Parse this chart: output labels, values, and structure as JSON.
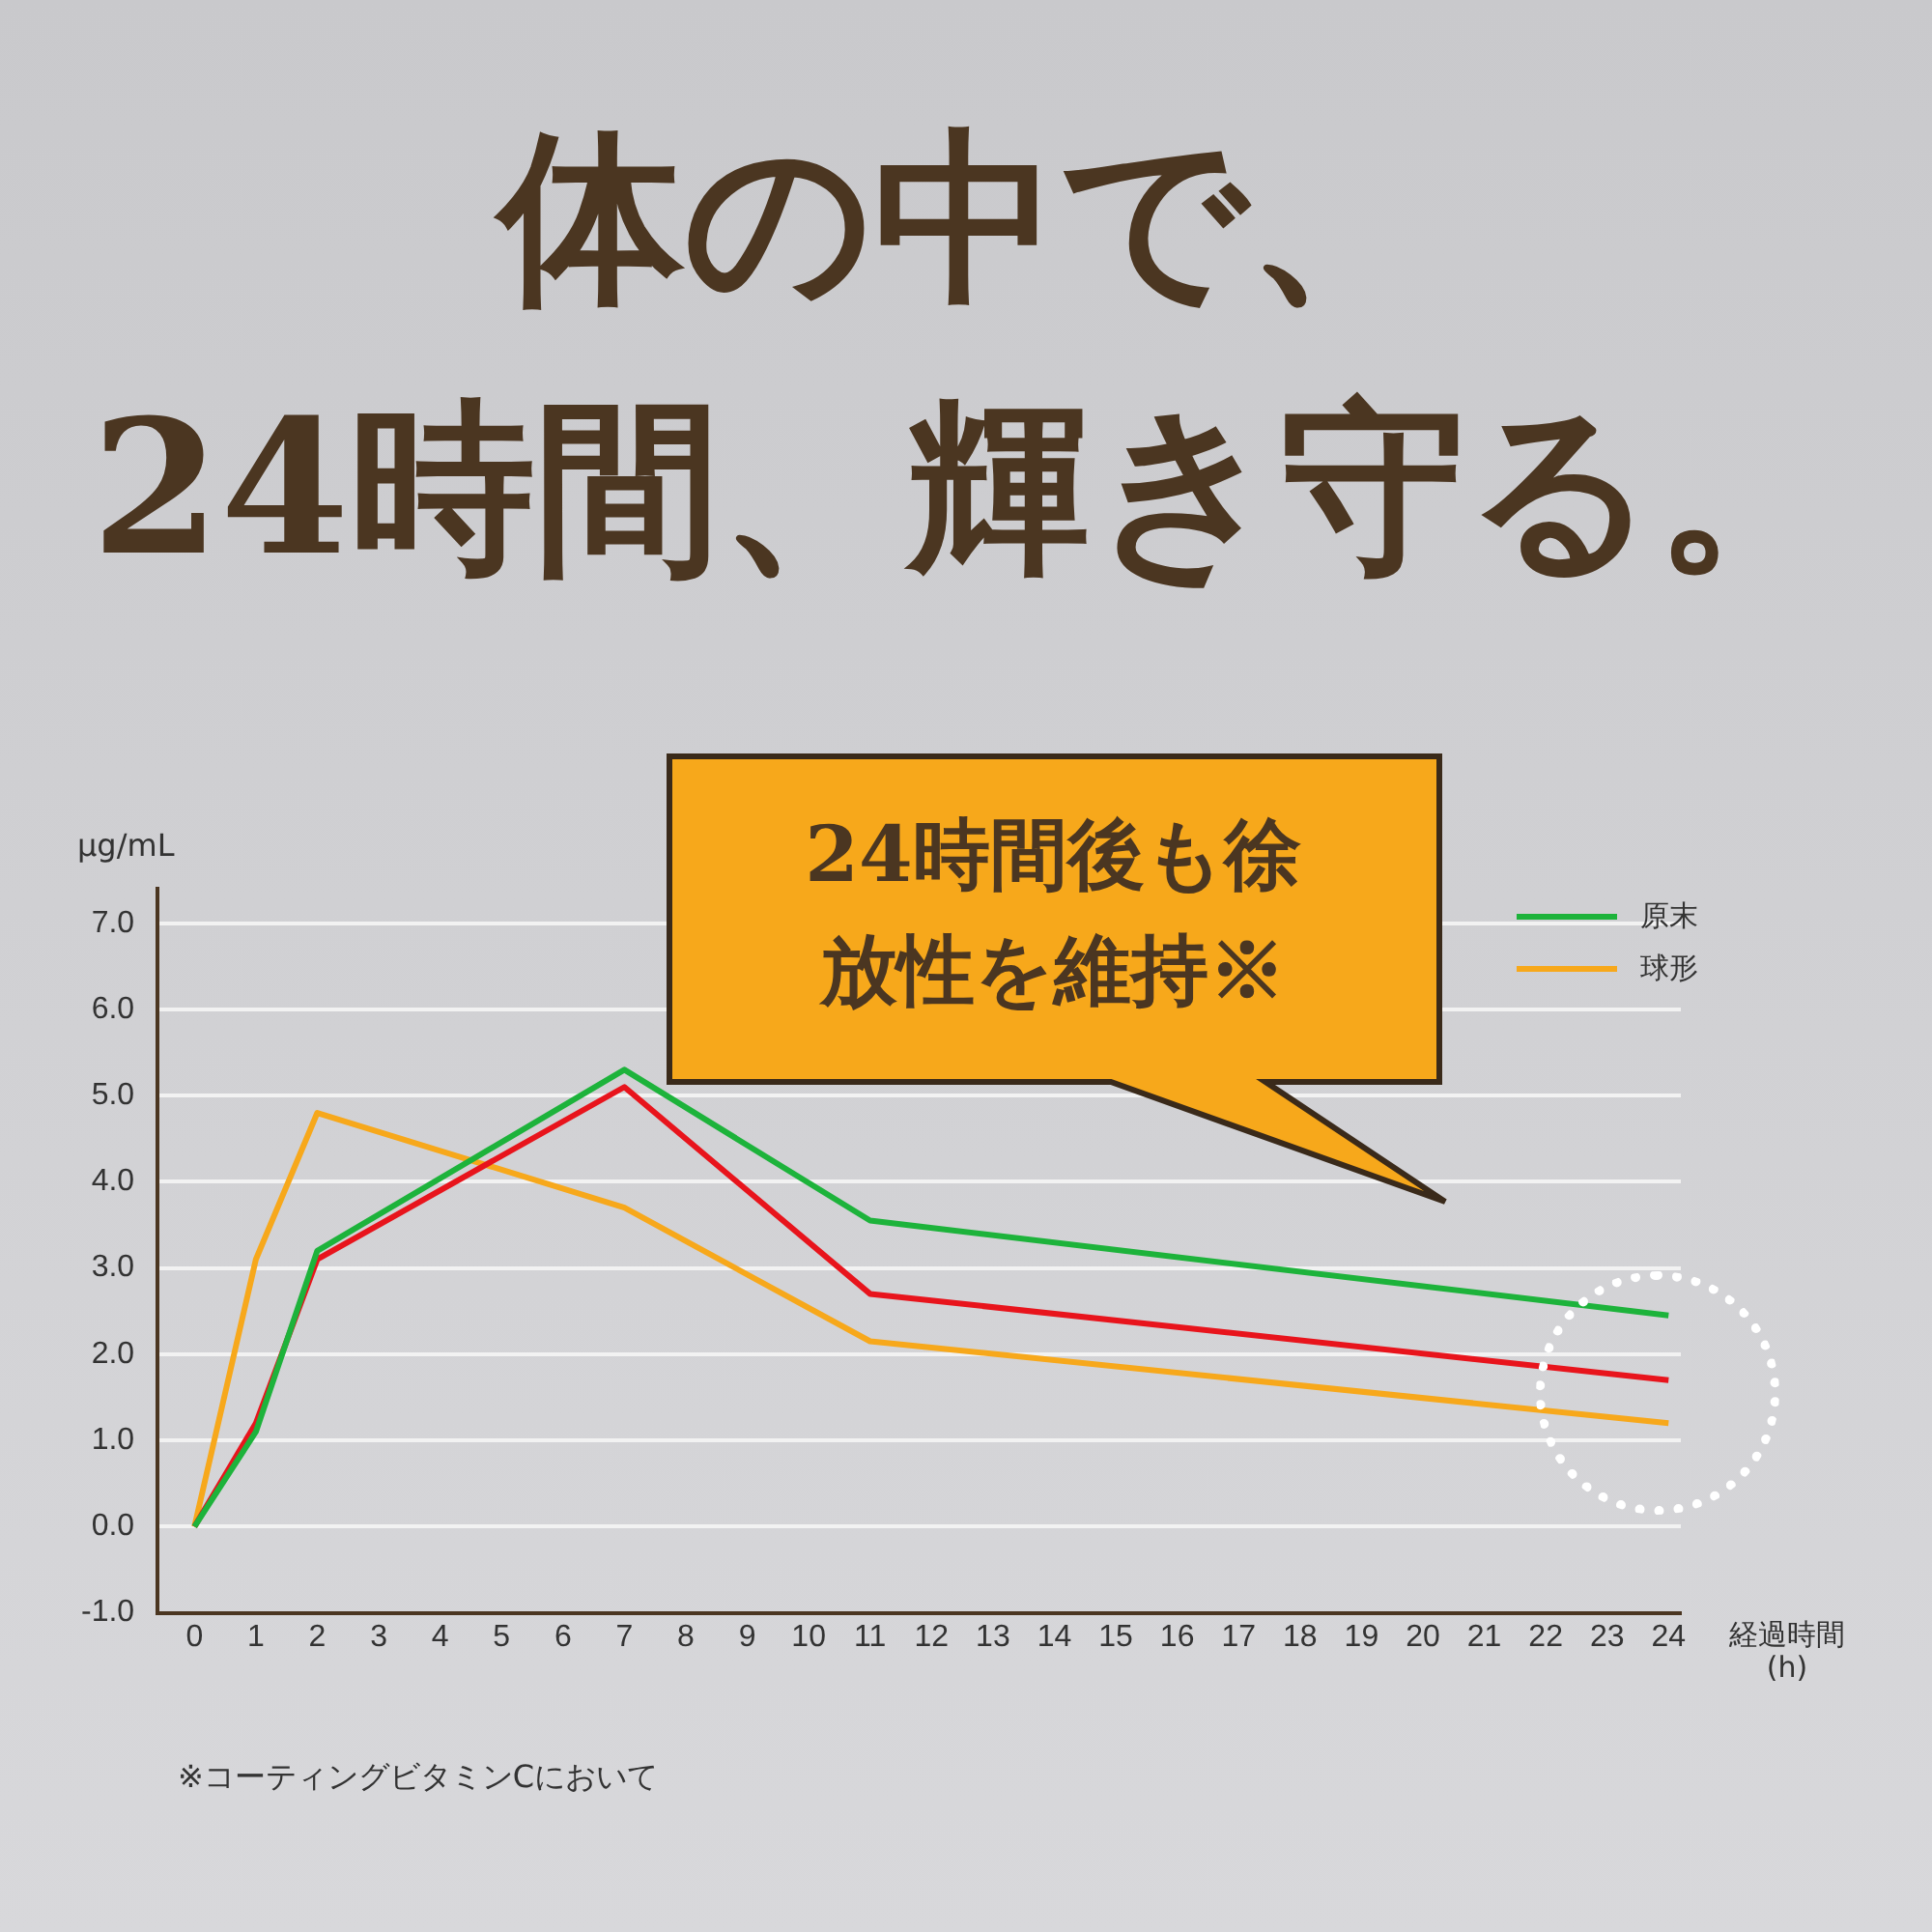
{
  "chart_data": {
    "type": "line",
    "title": "体の中で、",
    "subtitle": "24時間、輝き守る。",
    "ylabel": "μg/mL",
    "xlabel": "経過時間\n(h)",
    "annotations": [
      "24時間後も徐放性を維持※",
      "※コーティングビタミンCにおいて"
    ],
    "series": [
      {
        "name": "原末",
        "color": "#1db33b",
        "x": [
          0,
          1,
          2,
          7,
          11,
          24
        ],
        "values": [
          0,
          1.1,
          3.2,
          5.3,
          3.55,
          2.45
        ]
      },
      {
        "color": "#e8141c",
        "x": [
          0,
          1,
          2,
          7,
          11,
          24
        ],
        "values": [
          0,
          1.2,
          3.1,
          5.1,
          2.7,
          1.7
        ]
      },
      {
        "name": "球形",
        "color": "#f7a81b",
        "x": [
          0,
          1,
          2,
          7,
          11,
          24
        ],
        "values": [
          0,
          3.1,
          4.8,
          3.7,
          2.15,
          1.2
        ]
      }
    ],
    "xlim": [
      -0.6,
      24.2
    ],
    "xticks": [
      0,
      1,
      2,
      3,
      4,
      5,
      6,
      7,
      8,
      9,
      10,
      11,
      12,
      13,
      14,
      15,
      16,
      17,
      18,
      19,
      20,
      21,
      22,
      23,
      24
    ],
    "ylim": [
      -1,
      7.4
    ],
    "yticks": [
      {
        "value": -1,
        "label": "-1.0"
      },
      {
        "value": 0,
        "label": "0.0"
      },
      {
        "value": 1,
        "label": "1.0"
      },
      {
        "value": 2,
        "label": "2.0"
      },
      {
        "value": 3,
        "label": "3.0"
      },
      {
        "value": 4,
        "label": "4.0"
      },
      {
        "value": 5,
        "label": "5.0"
      },
      {
        "value": 6,
        "label": "6.0"
      },
      {
        "value": 7,
        "label": "7.0"
      }
    ],
    "grid": "y",
    "legend": "top right",
    "marker": "none",
    "line_style": "solid"
  }
}
